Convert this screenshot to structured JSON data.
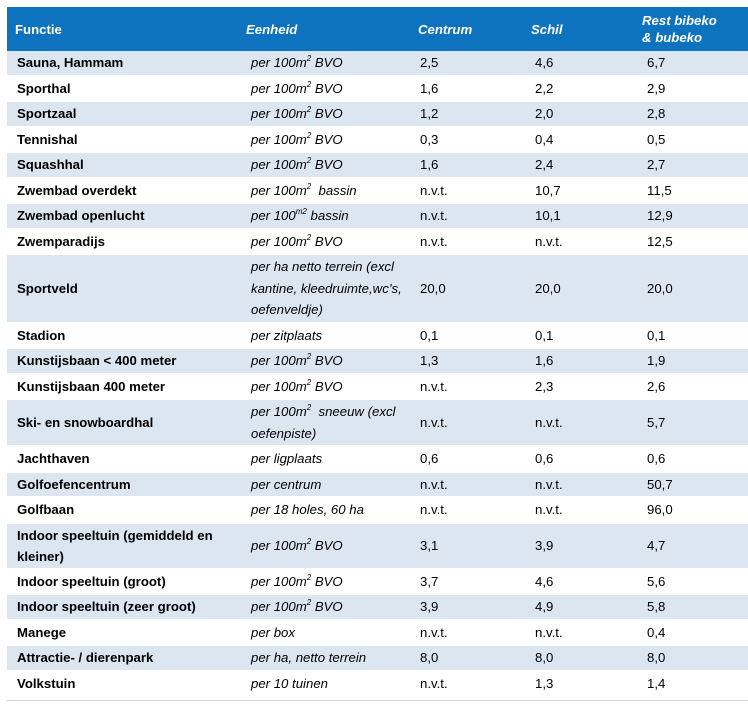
{
  "table": {
    "headers": [
      "Functie",
      "Eenheid",
      "Centrum",
      "Schil",
      "Rest bibeko\n& bubeko"
    ],
    "rows": [
      {
        "functie": "Sauna, Hammam",
        "eenheid": [
          "per 100m",
          "2",
          " BVO"
        ],
        "centrum": "2,5",
        "schil": "4,6",
        "rest": "6,7"
      },
      {
        "functie": "Sporthal",
        "eenheid": [
          "per 100m",
          "2",
          " BVO"
        ],
        "centrum": "1,6",
        "schil": "2,2",
        "rest": "2,9"
      },
      {
        "functie": "Sportzaal",
        "eenheid": [
          "per 100m",
          "2",
          " BVO"
        ],
        "centrum": "1,2",
        "schil": "2,0",
        "rest": "2,8"
      },
      {
        "functie": "Tennishal",
        "eenheid": [
          "per 100m",
          "2",
          " BVO"
        ],
        "centrum": "0,3",
        "schil": "0,4",
        "rest": "0,5"
      },
      {
        "functie": "Squashhal",
        "eenheid": [
          "per 100m",
          "2",
          " BVO"
        ],
        "centrum": "1,6",
        "schil": "2,4",
        "rest": "2,7"
      },
      {
        "functie": "Zwembad overdekt",
        "eenheid": [
          "per 100m",
          "2",
          "  bassin"
        ],
        "centrum": "n.v.t.",
        "schil": "10,7",
        "rest": "11,5"
      },
      {
        "functie": "Zwembad openlucht",
        "eenheid": [
          "per 100",
          "m2",
          " bassin"
        ],
        "centrum": "n.v.t.",
        "schil": "10,1",
        "rest": "12,9"
      },
      {
        "functie": "Zwemparadijs",
        "eenheid": [
          "per 100m",
          "2",
          " BVO"
        ],
        "centrum": "n.v.t.",
        "schil": "n.v.t.",
        "rest": "12,5"
      },
      {
        "functie": "Sportveld",
        "eenheid": [
          "per ha netto terrein (excl kantine, kleedruimte,wc’s, oefenveldje)",
          "",
          ""
        ],
        "centrum": "20,0",
        "schil": "20,0",
        "rest": "20,0"
      },
      {
        "functie": "Stadion",
        "eenheid": [
          "per zitplaats",
          "",
          ""
        ],
        "centrum": "0,1",
        "schil": "0,1",
        "rest": "0,1"
      },
      {
        "functie": "Kunstijsbaan < 400 meter",
        "eenheid": [
          "per 100m",
          "2",
          " BVO"
        ],
        "centrum": "1,3",
        "schil": "1,6",
        "rest": "1,9"
      },
      {
        "functie": "Kunstijsbaan 400 meter",
        "eenheid": [
          "per 100m",
          "2",
          " BVO"
        ],
        "centrum": "n.v.t.",
        "schil": "2,3",
        "rest": "2,6"
      },
      {
        "functie": "Ski- en snowboardhal",
        "eenheid": [
          "per 100m",
          "2",
          "  sneeuw (excl oefenpiste)"
        ],
        "centrum": "n.v.t.",
        "schil": "n.v.t.",
        "rest": "5,7"
      },
      {
        "functie": "Jachthaven",
        "eenheid": [
          "per ligplaats",
          "",
          ""
        ],
        "centrum": "0,6",
        "schil": "0,6",
        "rest": "0,6"
      },
      {
        "functie": "Golfoefencentrum",
        "eenheid": [
          "per centrum",
          "",
          ""
        ],
        "centrum": "n.v.t.",
        "schil": "n.v.t.",
        "rest": "50,7"
      },
      {
        "functie": "Golfbaan",
        "eenheid": [
          "per 18 holes, 60 ha",
          "",
          ""
        ],
        "centrum": "n.v.t.",
        "schil": "n.v.t.",
        "rest": "96,0"
      },
      {
        "functie": "Indoor speeltuin (gemiddeld en kleiner)",
        "eenheid": [
          "per 100m",
          "2",
          " BVO"
        ],
        "centrum": "3,1",
        "schil": "3,9",
        "rest": "4,7"
      },
      {
        "functie": "Indoor speeltuin (groot)",
        "eenheid": [
          "per 100m",
          "2",
          " BVO"
        ],
        "centrum": "3,7",
        "schil": "4,6",
        "rest": "5,6"
      },
      {
        "functie": "Indoor speeltuin (zeer groot)",
        "eenheid": [
          "per 100m",
          "2",
          " BVO"
        ],
        "centrum": "3,9",
        "schil": "4,9",
        "rest": "5,8"
      },
      {
        "functie": "Manege",
        "eenheid": [
          "per box",
          "",
          ""
        ],
        "centrum": "n.v.t.",
        "schil": "n.v.t.",
        "rest": "0,4"
      },
      {
        "functie": "Attractie- / dierenpark",
        "eenheid": [
          "per ha, netto terrein",
          "",
          ""
        ],
        "centrum": "8,0",
        "schil": "8,0",
        "rest": "8,0"
      },
      {
        "functie": "Volkstuin",
        "eenheid": [
          "per 10 tuinen",
          "",
          ""
        ],
        "centrum": "n.v.t.",
        "schil": "1,3",
        "rest": "1,4"
      }
    ]
  },
  "colors": {
    "header_bg": "#0e73be",
    "header_text": "#ffffff",
    "band_bg": "#dce6f1"
  }
}
